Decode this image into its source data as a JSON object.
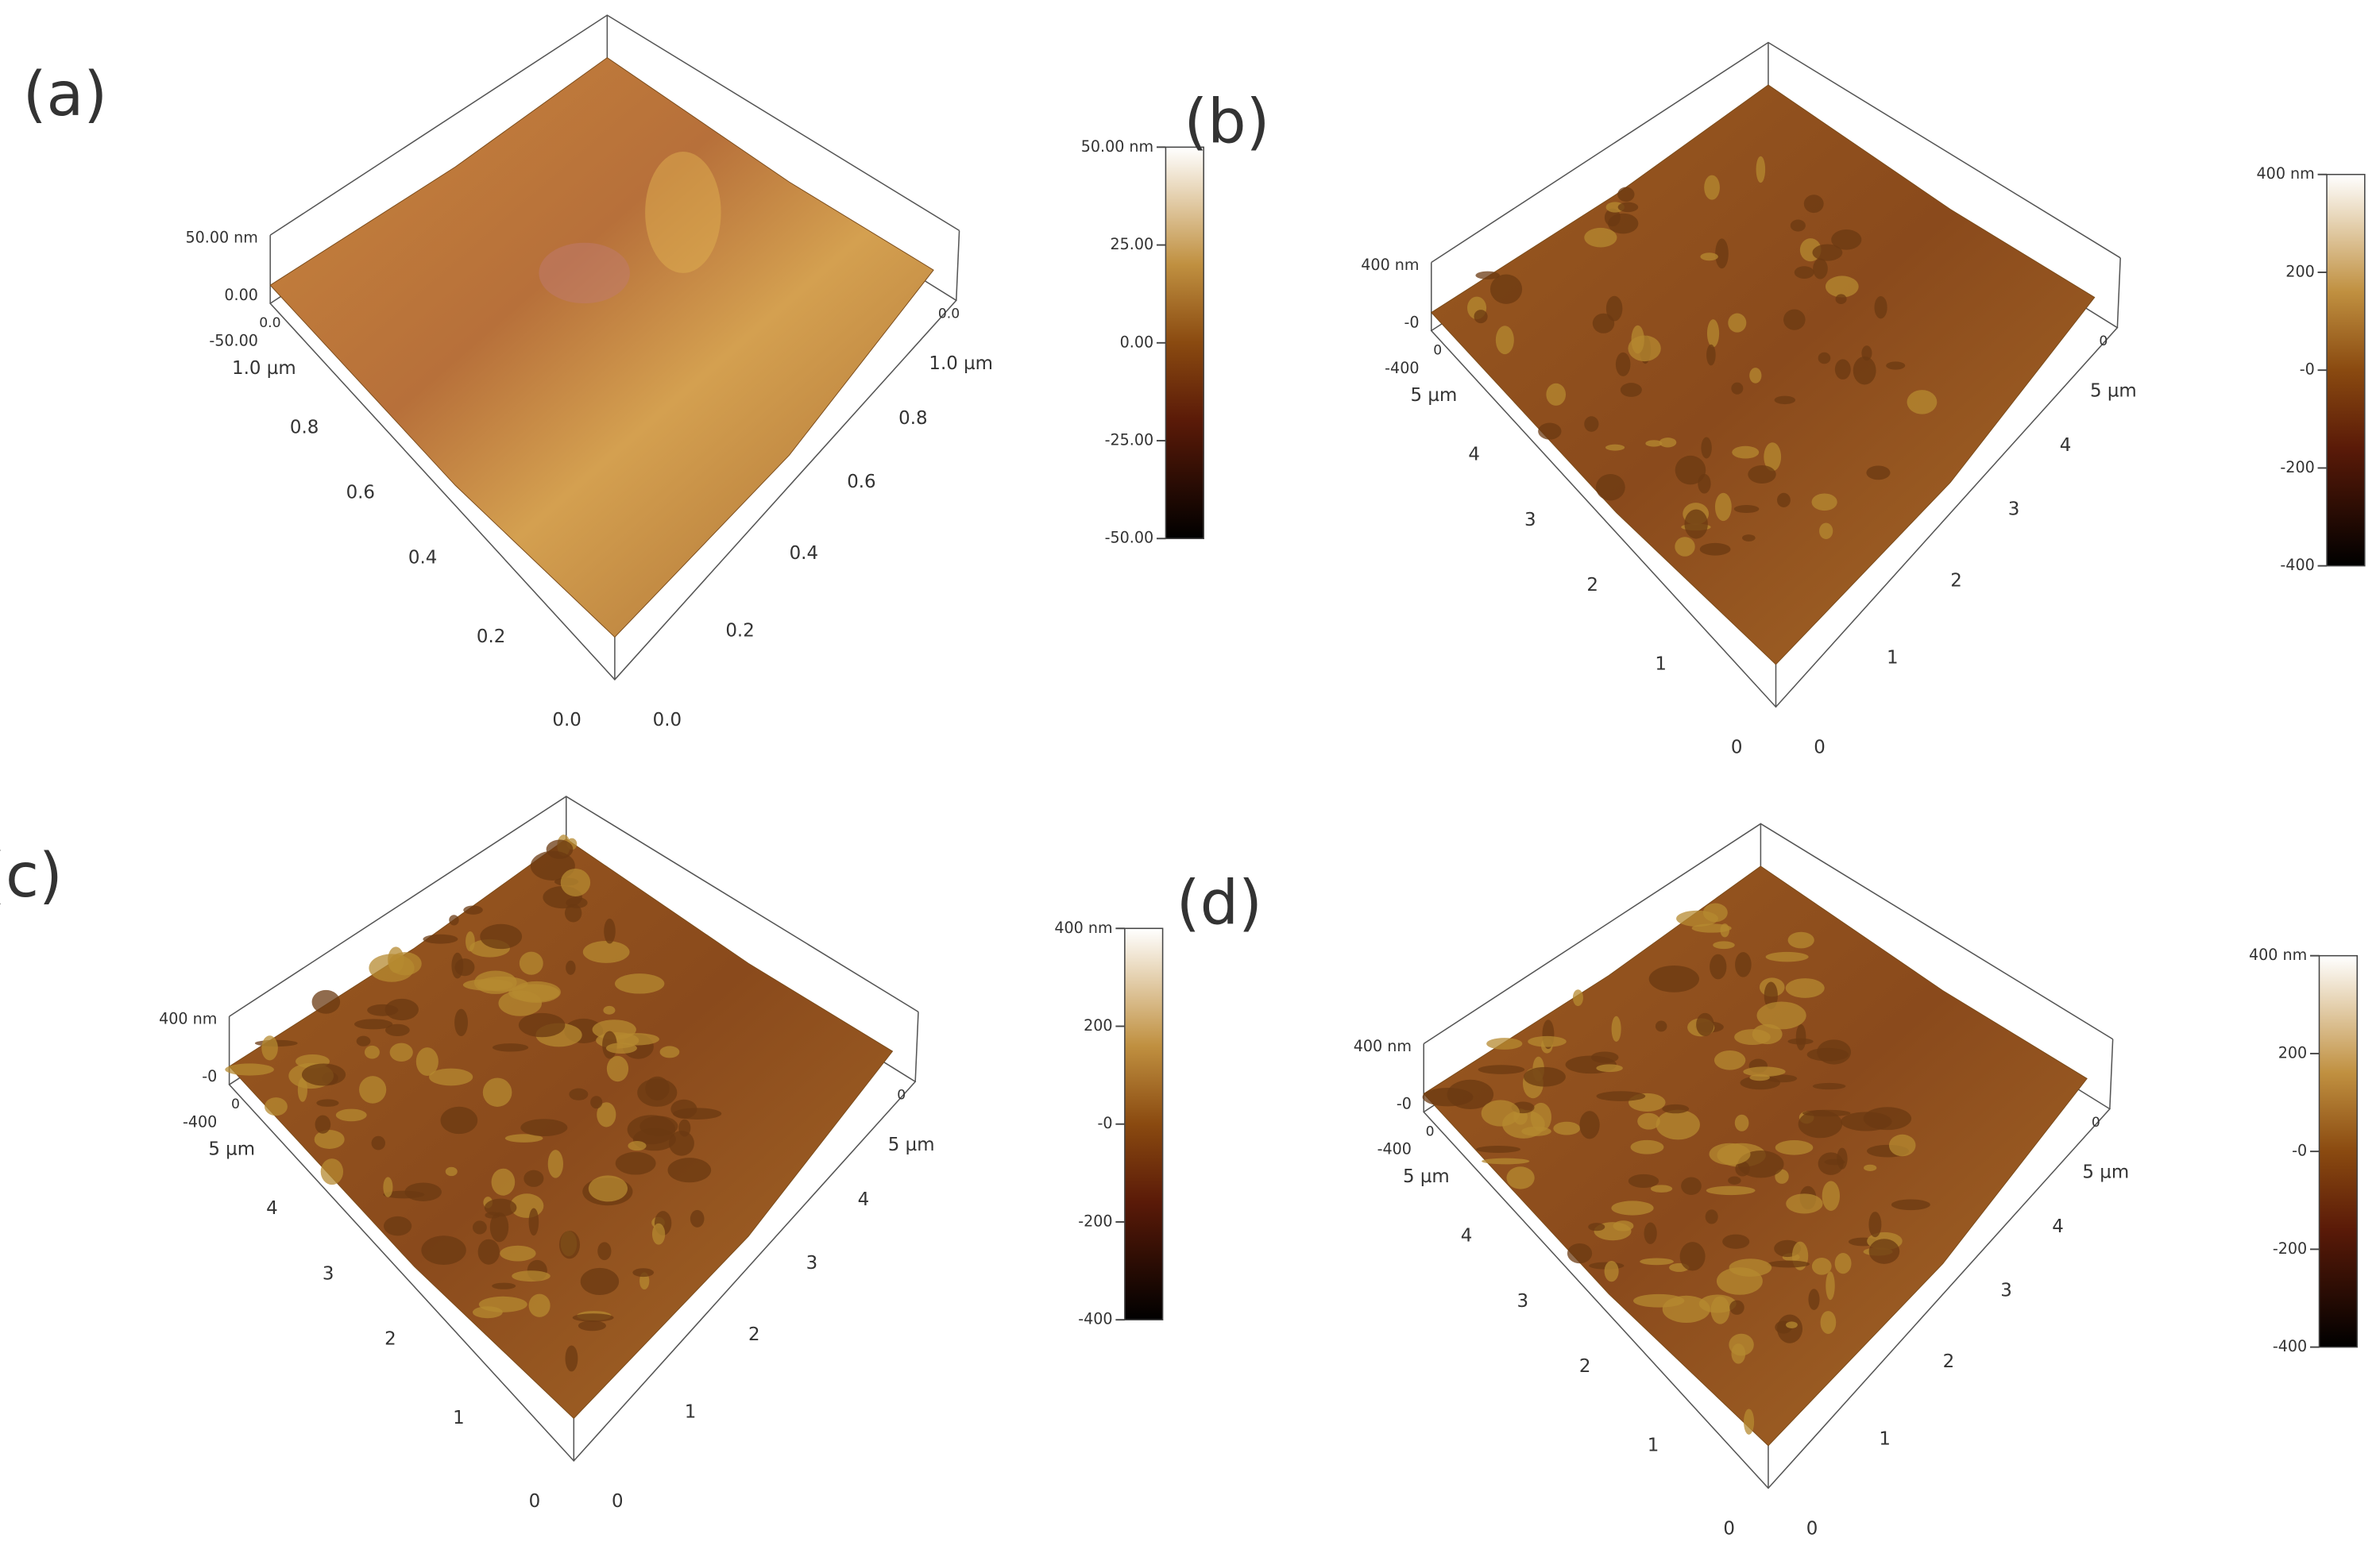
{
  "panels": [
    {
      "label": "(a)",
      "z_axis": [
        "50.00 nm",
        "0.00",
        "-50.00"
      ],
      "left_axis": [
        "0.0",
        "1.0 µm",
        "0.8",
        "0.6",
        "0.4",
        "0.2",
        "0.0"
      ],
      "right_axis": [
        "0.0",
        "1.0 µm",
        "0.8",
        "0.6",
        "0.4",
        "0.2",
        "0.0"
      ],
      "colorbar": [
        "50.00 nm",
        "25.00",
        "0.00",
        "-25.00",
        "-50.00"
      ]
    },
    {
      "label": "(b)",
      "z_axis": [
        "400 nm",
        "-0",
        "-400"
      ],
      "left_axis": [
        "0",
        "5 µm",
        "4",
        "3",
        "2",
        "1",
        "0"
      ],
      "right_axis": [
        "0",
        "5 µm",
        "4",
        "3",
        "2",
        "1",
        "0"
      ],
      "colorbar": [
        "400 nm",
        "200",
        "-0",
        "-200",
        "-400"
      ]
    },
    {
      "label": "(c)",
      "z_axis": [
        "400 nm",
        "-0",
        "-400"
      ],
      "left_axis": [
        "0",
        "5 µm",
        "4",
        "3",
        "2",
        "1",
        "0"
      ],
      "right_axis": [
        "0",
        "5 µm",
        "4",
        "3",
        "2",
        "1",
        "0"
      ],
      "colorbar": [
        "400 nm",
        "200",
        "-0",
        "-200",
        "-400"
      ]
    },
    {
      "label": "(d)",
      "z_axis": [
        "400 nm",
        "-0",
        "-400"
      ],
      "left_axis": [
        "0",
        "5 µm",
        "4",
        "3",
        "2",
        "1",
        "0"
      ],
      "right_axis": [
        "0",
        "5 µm",
        "4",
        "3",
        "2",
        "1",
        "0"
      ],
      "colorbar": [
        "400 nm",
        "200",
        "-0",
        "-200",
        "-400"
      ]
    }
  ]
}
